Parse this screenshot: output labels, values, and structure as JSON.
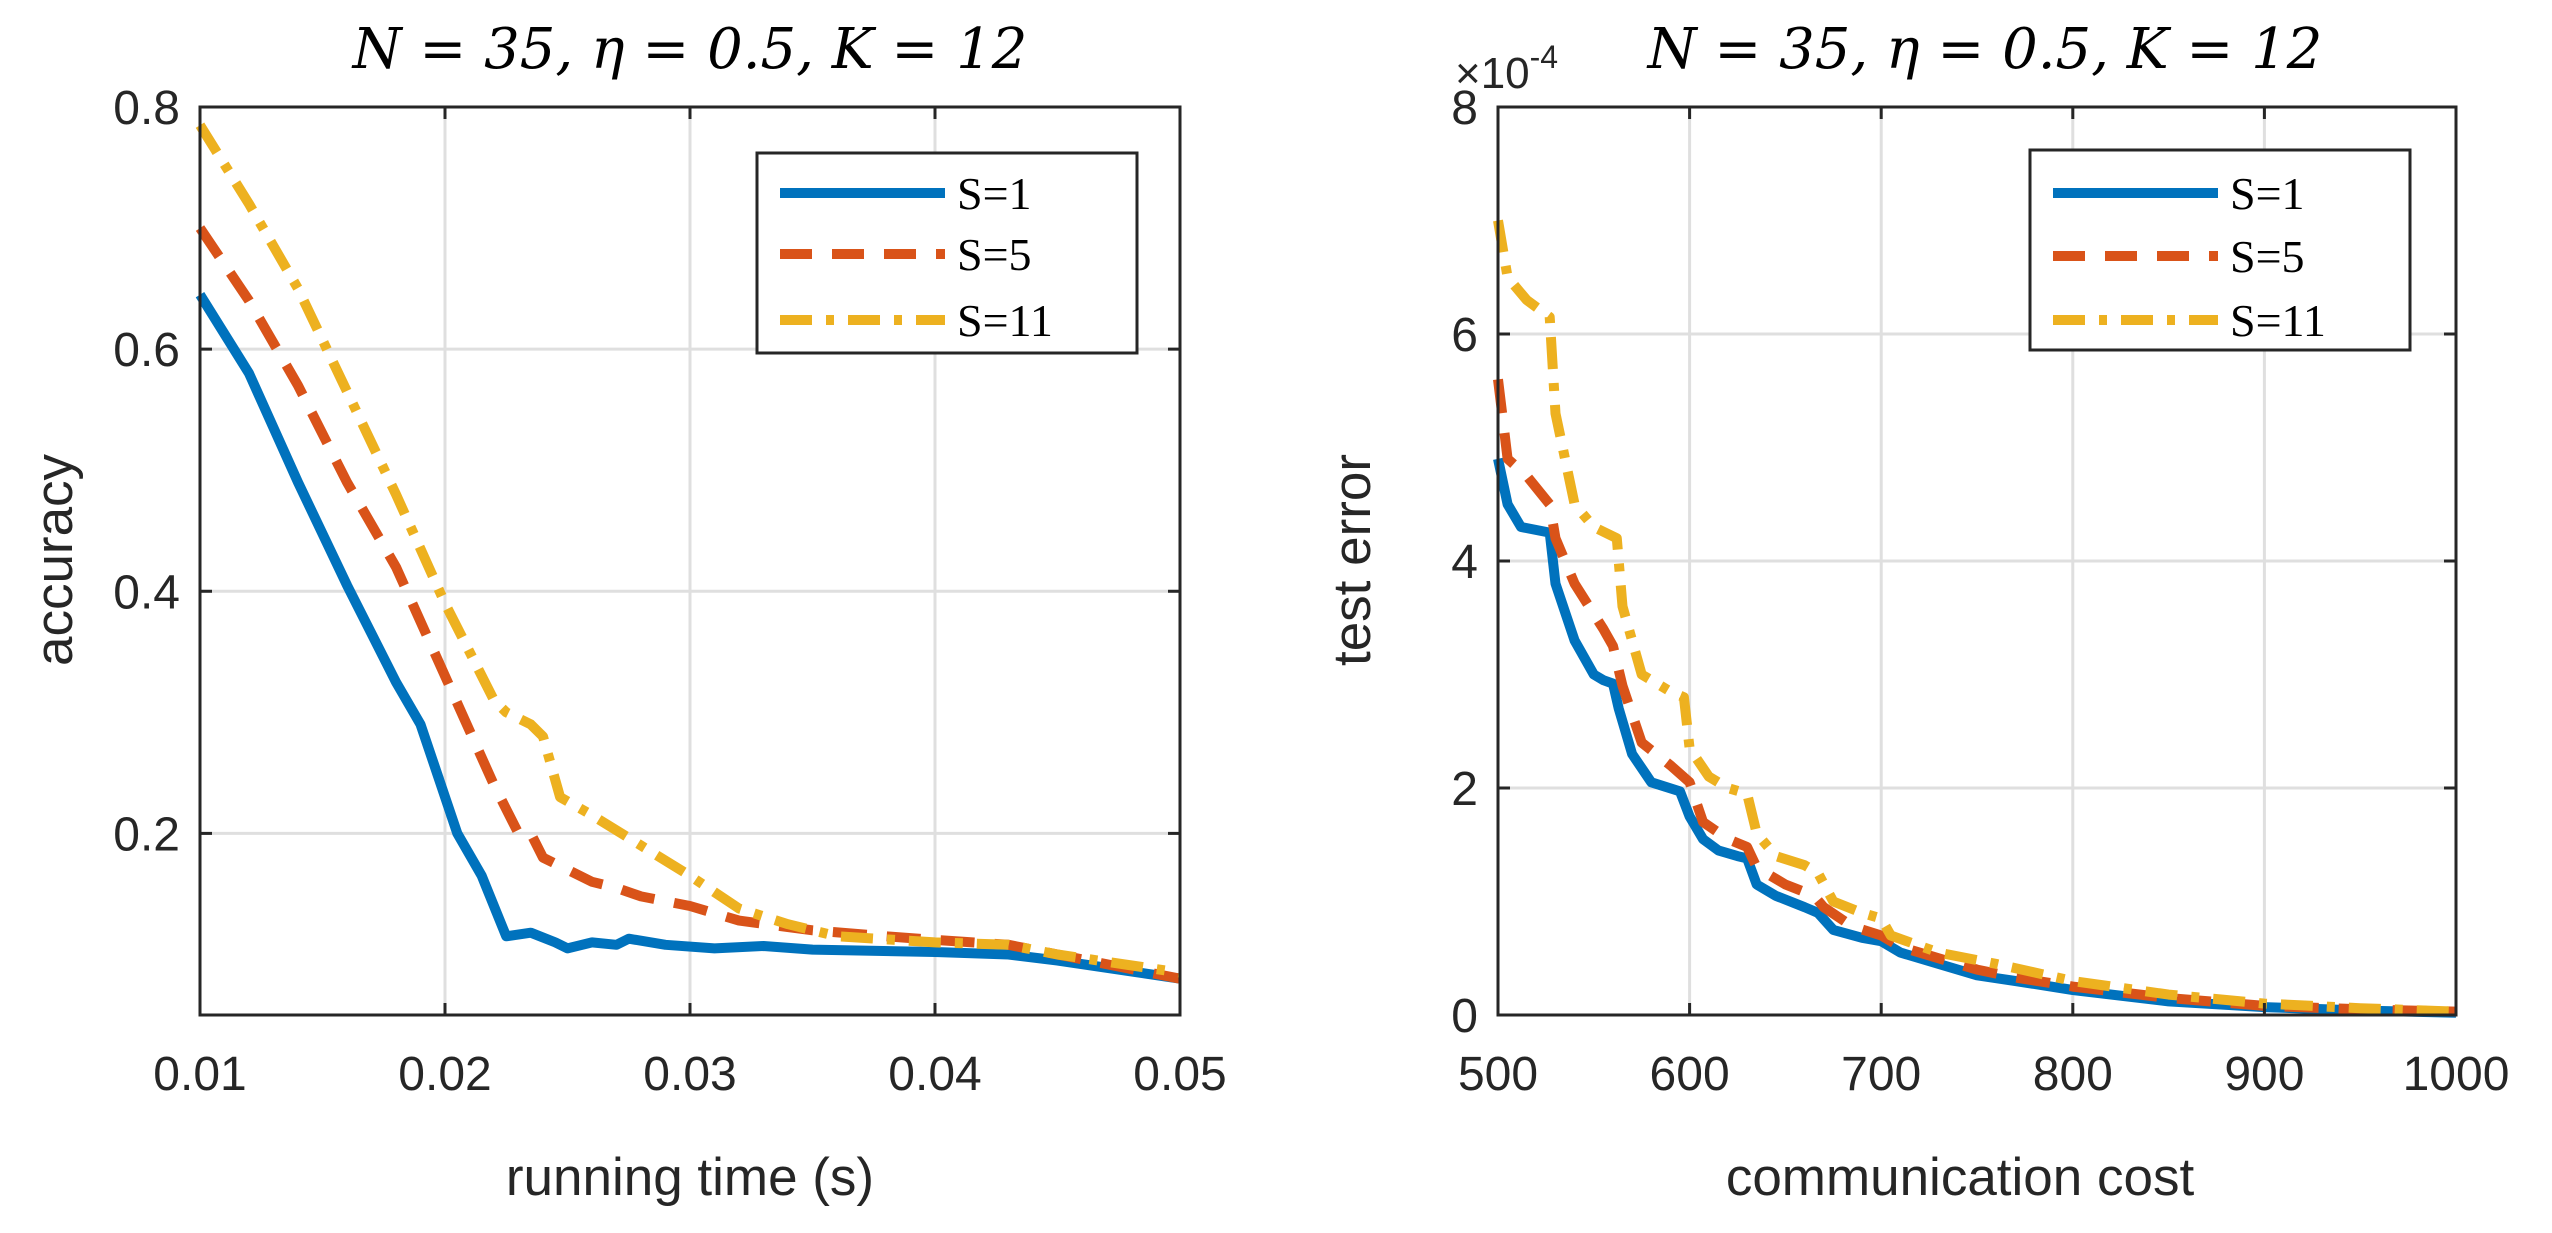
{
  "chart_data": [
    {
      "type": "line",
      "title": "N = 35, η = 0.5, K = 12",
      "xlabel": "running time (s)",
      "ylabel": "accuracy",
      "xlim": [
        0.01,
        0.05
      ],
      "ylim": [
        0.05,
        0.8
      ],
      "xticks": [
        0.01,
        0.02,
        0.03,
        0.04,
        0.05
      ],
      "xtick_labels": [
        "0.01",
        "0.02",
        "0.03",
        "0.04",
        "0.05"
      ],
      "yticks": [
        0.2,
        0.4,
        0.6,
        0.8
      ],
      "ytick_labels": [
        "0.2",
        "0.4",
        "0.6",
        "0.8"
      ],
      "multiplier": "",
      "grid": true,
      "legend_position": "top-right",
      "series": [
        {
          "name": "S=1",
          "color": "#0072BD",
          "dash": "solid",
          "points": [
            [
              0.01,
              0.645
            ],
            [
              0.012,
              0.58
            ],
            [
              0.014,
              0.49
            ],
            [
              0.016,
              0.405
            ],
            [
              0.018,
              0.325
            ],
            [
              0.019,
              0.29
            ],
            [
              0.0195,
              0.26
            ],
            [
              0.0205,
              0.2
            ],
            [
              0.0215,
              0.165
            ],
            [
              0.0225,
              0.115
            ],
            [
              0.0235,
              0.118
            ],
            [
              0.0245,
              0.11
            ],
            [
              0.025,
              0.105
            ],
            [
              0.026,
              0.11
            ],
            [
              0.027,
              0.108
            ],
            [
              0.0275,
              0.113
            ],
            [
              0.029,
              0.108
            ],
            [
              0.031,
              0.105
            ],
            [
              0.033,
              0.107
            ],
            [
              0.035,
              0.104
            ],
            [
              0.04,
              0.102
            ],
            [
              0.043,
              0.1
            ],
            [
              0.045,
              0.095
            ],
            [
              0.05,
              0.08
            ]
          ]
        },
        {
          "name": "S=5",
          "color": "#D95319",
          "dash": "dashed",
          "points": [
            [
              0.01,
              0.7
            ],
            [
              0.012,
              0.64
            ],
            [
              0.014,
              0.57
            ],
            [
              0.016,
              0.49
            ],
            [
              0.018,
              0.42
            ],
            [
              0.02,
              0.33
            ],
            [
              0.022,
              0.24
            ],
            [
              0.023,
              0.2
            ],
            [
              0.0235,
              0.2
            ],
            [
              0.024,
              0.18
            ],
            [
              0.025,
              0.17
            ],
            [
              0.026,
              0.16
            ],
            [
              0.027,
              0.155
            ],
            [
              0.028,
              0.148
            ],
            [
              0.03,
              0.14
            ],
            [
              0.032,
              0.128
            ],
            [
              0.035,
              0.12
            ],
            [
              0.038,
              0.115
            ],
            [
              0.04,
              0.112
            ],
            [
              0.043,
              0.108
            ],
            [
              0.045,
              0.1
            ],
            [
              0.05,
              0.08
            ]
          ]
        },
        {
          "name": "S=11",
          "color": "#EDB120",
          "dash": "dashdot",
          "points": [
            [
              0.01,
              0.785
            ],
            [
              0.012,
              0.72
            ],
            [
              0.014,
              0.65
            ],
            [
              0.016,
              0.565
            ],
            [
              0.018,
              0.48
            ],
            [
              0.02,
              0.39
            ],
            [
              0.021,
              0.35
            ],
            [
              0.022,
              0.31
            ],
            [
              0.0225,
              0.3
            ],
            [
              0.0235,
              0.29
            ],
            [
              0.024,
              0.28
            ],
            [
              0.0247,
              0.23
            ],
            [
              0.026,
              0.215
            ],
            [
              0.028,
              0.19
            ],
            [
              0.03,
              0.165
            ],
            [
              0.032,
              0.138
            ],
            [
              0.034,
              0.125
            ],
            [
              0.036,
              0.115
            ],
            [
              0.04,
              0.11
            ],
            [
              0.043,
              0.108
            ],
            [
              0.045,
              0.1
            ],
            [
              0.05,
              0.085
            ]
          ]
        }
      ]
    },
    {
      "type": "line",
      "title": "N = 35, η = 0.5, K = 12",
      "xlabel": "communication cost",
      "ylabel": "test error",
      "xlim": [
        500,
        1000
      ],
      "ylim": [
        0,
        8
      ],
      "xticks": [
        500,
        600,
        700,
        800,
        900,
        1000
      ],
      "xtick_labels": [
        "500",
        "600",
        "700",
        "800",
        "900",
        "1000"
      ],
      "yticks": [
        0,
        2,
        4,
        6,
        8
      ],
      "ytick_labels": [
        "0",
        "2",
        "4",
        "6",
        "8"
      ],
      "multiplier": "×10",
      "multiplier_exp": "-4",
      "grid": true,
      "legend_position": "top-right",
      "series": [
        {
          "name": "S=1",
          "color": "#0072BD",
          "dash": "solid",
          "points": [
            [
              500,
              4.9
            ],
            [
              505,
              4.5
            ],
            [
              512,
              4.3
            ],
            [
              527,
              4.25
            ],
            [
              530,
              3.8
            ],
            [
              540,
              3.3
            ],
            [
              550,
              3.0
            ],
            [
              555,
              2.95
            ],
            [
              560,
              2.92
            ],
            [
              563,
              2.7
            ],
            [
              570,
              2.3
            ],
            [
              580,
              2.05
            ],
            [
              595,
              1.97
            ],
            [
              600,
              1.75
            ],
            [
              607,
              1.55
            ],
            [
              615,
              1.45
            ],
            [
              625,
              1.4
            ],
            [
              630,
              1.38
            ],
            [
              635,
              1.15
            ],
            [
              645,
              1.05
            ],
            [
              660,
              0.95
            ],
            [
              667,
              0.9
            ],
            [
              675,
              0.75
            ],
            [
              690,
              0.68
            ],
            [
              700,
              0.65
            ],
            [
              710,
              0.55
            ],
            [
              730,
              0.45
            ],
            [
              750,
              0.35
            ],
            [
              770,
              0.3
            ],
            [
              800,
              0.22
            ],
            [
              850,
              0.12
            ],
            [
              900,
              0.07
            ],
            [
              950,
              0.04
            ],
            [
              1000,
              0.02
            ]
          ]
        },
        {
          "name": "S=5",
          "color": "#D95319",
          "dash": "dashed",
          "points": [
            [
              500,
              5.6
            ],
            [
              505,
              4.9
            ],
            [
              515,
              4.75
            ],
            [
              527,
              4.5
            ],
            [
              530,
              4.2
            ],
            [
              540,
              3.8
            ],
            [
              555,
              3.4
            ],
            [
              560,
              3.25
            ],
            [
              565,
              2.9
            ],
            [
              575,
              2.4
            ],
            [
              590,
              2.2
            ],
            [
              600,
              2.05
            ],
            [
              607,
              1.7
            ],
            [
              620,
              1.55
            ],
            [
              630,
              1.48
            ],
            [
              635,
              1.3
            ],
            [
              650,
              1.15
            ],
            [
              665,
              1.05
            ],
            [
              670,
              0.95
            ],
            [
              685,
              0.78
            ],
            [
              700,
              0.7
            ],
            [
              710,
              0.6
            ],
            [
              730,
              0.5
            ],
            [
              750,
              0.4
            ],
            [
              770,
              0.33
            ],
            [
              800,
              0.25
            ],
            [
              850,
              0.15
            ],
            [
              900,
              0.08
            ],
            [
              950,
              0.05
            ],
            [
              1000,
              0.03
            ]
          ]
        },
        {
          "name": "S=11",
          "color": "#EDB120",
          "dash": "dashdot",
          "points": [
            [
              500,
              7.0
            ],
            [
              505,
              6.5
            ],
            [
              515,
              6.3
            ],
            [
              527,
              6.15
            ],
            [
              530,
              5.3
            ],
            [
              540,
              4.5
            ],
            [
              550,
              4.3
            ],
            [
              562,
              4.2
            ],
            [
              565,
              3.6
            ],
            [
              575,
              3.0
            ],
            [
              590,
              2.85
            ],
            [
              597,
              2.8
            ],
            [
              600,
              2.35
            ],
            [
              610,
              2.1
            ],
            [
              620,
              2.0
            ],
            [
              630,
              1.95
            ],
            [
              635,
              1.6
            ],
            [
              645,
              1.4
            ],
            [
              660,
              1.32
            ],
            [
              667,
              1.25
            ],
            [
              675,
              1.0
            ],
            [
              690,
              0.9
            ],
            [
              700,
              0.85
            ],
            [
              705,
              0.7
            ],
            [
              730,
              0.55
            ],
            [
              760,
              0.45
            ],
            [
              800,
              0.3
            ],
            [
              850,
              0.18
            ],
            [
              900,
              0.1
            ],
            [
              950,
              0.06
            ],
            [
              1000,
              0.03
            ]
          ]
        }
      ]
    }
  ]
}
